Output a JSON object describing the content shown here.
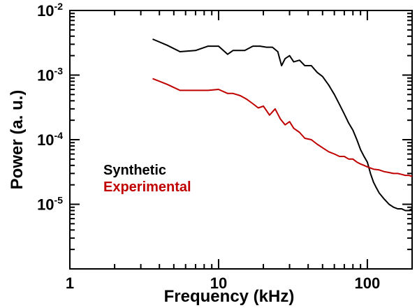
{
  "chart_data": {
    "type": "line",
    "xlabel": "Frequency (kHz)",
    "ylabel": "Power (a. u.)",
    "x_scale": "log",
    "y_scale": "log",
    "xlim": [
      1,
      200
    ],
    "ylim": [
      1e-06,
      0.01
    ],
    "x_ticks": [
      {
        "value": 1,
        "label": "1"
      },
      {
        "value": 10,
        "label": "10"
      },
      {
        "value": 100,
        "label": "100"
      }
    ],
    "y_ticks": [
      {
        "value": 1e-05,
        "base": "10",
        "exp": "-5"
      },
      {
        "value": 0.0001,
        "base": "10",
        "exp": "-4"
      },
      {
        "value": 0.001,
        "base": "10",
        "exp": "-3"
      },
      {
        "value": 0.01,
        "base": "10",
        "exp": "-2"
      }
    ],
    "grid": false,
    "legend_position": "left",
    "series": [
      {
        "name": "Synthetic",
        "color": "#000000",
        "x": [
          3.6,
          4.5,
          5.5,
          7.0,
          8.5,
          10.0,
          11.5,
          12.5,
          15.0,
          17.0,
          19.0,
          21.0,
          23.0,
          25.0,
          26.5,
          28.0,
          30.0,
          32.0,
          35.0,
          38.0,
          42.0,
          46.0,
          50.0,
          55.0,
          60.0,
          65.0,
          70.0,
          75.0,
          80.0,
          85.0,
          90.0,
          95.0,
          100.0,
          105.0,
          110.0,
          115.0,
          120.0,
          130.0,
          140.0,
          150.0,
          160.0,
          170.0,
          180.0,
          190.0,
          200.0
        ],
        "y": [
          0.0036,
          0.0029,
          0.0023,
          0.0024,
          0.0028,
          0.0028,
          0.0021,
          0.0024,
          0.0024,
          0.0028,
          0.0028,
          0.0027,
          0.0027,
          0.0023,
          0.0014,
          0.0018,
          0.002,
          0.0016,
          0.0017,
          0.0014,
          0.0014,
          0.0011,
          0.00095,
          0.0007,
          0.0005,
          0.00035,
          0.00025,
          0.00018,
          0.00014,
          0.0001,
          7e-05,
          5.5e-05,
          4.5e-05,
          3e-05,
          2.2e-05,
          1.8e-05,
          1.5e-05,
          1.2e-05,
          1e-05,
          9e-06,
          8.5e-06,
          8.5e-06,
          8e-06,
          8e-06,
          8.5e-06
        ]
      },
      {
        "name": "Experimental",
        "color": "#c00000",
        "x": [
          3.6,
          4.5,
          5.5,
          7.0,
          8.5,
          10.0,
          11.5,
          12.5,
          14.0,
          15.5,
          17.0,
          18.5,
          20.0,
          22.0,
          24.0,
          26.0,
          28.0,
          30.0,
          32.0,
          35.0,
          38.0,
          42.0,
          46.0,
          50.0,
          55.0,
          60.0,
          65.0,
          70.0,
          75.0,
          80.0,
          85.0,
          90.0,
          95.0,
          100.0,
          110.0,
          120.0,
          130.0,
          140.0,
          150.0,
          160.0,
          170.0,
          180.0,
          190.0,
          200.0
        ],
        "y": [
          0.00088,
          0.00072,
          0.00058,
          0.00058,
          0.00058,
          0.0006,
          0.00052,
          0.00052,
          0.00048,
          0.00042,
          0.00036,
          0.00031,
          0.00033,
          0.00024,
          0.0003,
          0.00021,
          0.00017,
          0.00019,
          0.00015,
          0.00013,
          0.000105,
          0.0001,
          8.5e-05,
          7.5e-05,
          6.5e-05,
          6e-05,
          5.5e-05,
          5.5e-05,
          5e-05,
          5e-05,
          4.5e-05,
          4.2e-05,
          4e-05,
          3.8e-05,
          3.5e-05,
          3.4e-05,
          3.2e-05,
          3.1e-05,
          3e-05,
          3e-05,
          2.9e-05,
          2.8e-05,
          2.8e-05,
          2.7e-05
        ]
      }
    ]
  }
}
